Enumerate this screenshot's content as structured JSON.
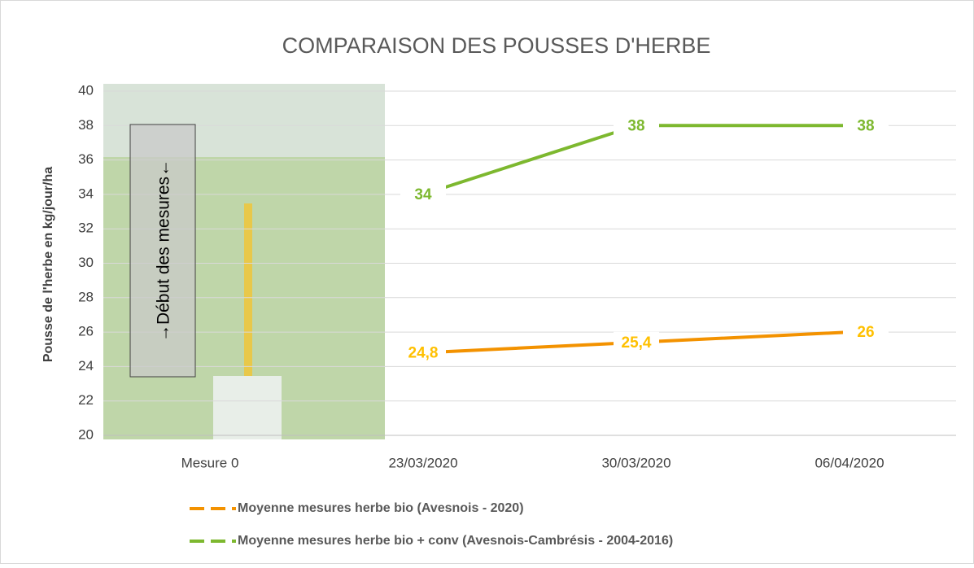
{
  "chart_data": {
    "type": "line",
    "title": "COMPARAISON DES POUSSES D'HERBE",
    "y_label": "Pousse de l'herbe en kg/jour/ha",
    "annotation": "→Début des mesures←",
    "categories": [
      "Mesure 0",
      "23/03/2020",
      "30/03/2020",
      "06/04/2020"
    ],
    "series": [
      {
        "name": "Moyenne mesures herbe bio (Avesnois - 2020)",
        "color": "#f39200",
        "label_color": "#ffc000",
        "values": [
          null,
          24.8,
          25.4,
          26
        ],
        "value_labels": [
          null,
          "24,8",
          "25,4",
          "26"
        ]
      },
      {
        "name": "Moyenne mesures herbe bio + conv (Avesnois-Cambrésis - 2004-2016)",
        "color": "#7db82f",
        "label_color": "#7db82f",
        "values": [
          null,
          34,
          38,
          38
        ]
      }
    ],
    "ylim": [
      20,
      40
    ],
    "yticks": [
      20,
      22,
      24,
      26,
      28,
      30,
      32,
      34,
      36,
      38,
      40
    ],
    "grid": true
  }
}
